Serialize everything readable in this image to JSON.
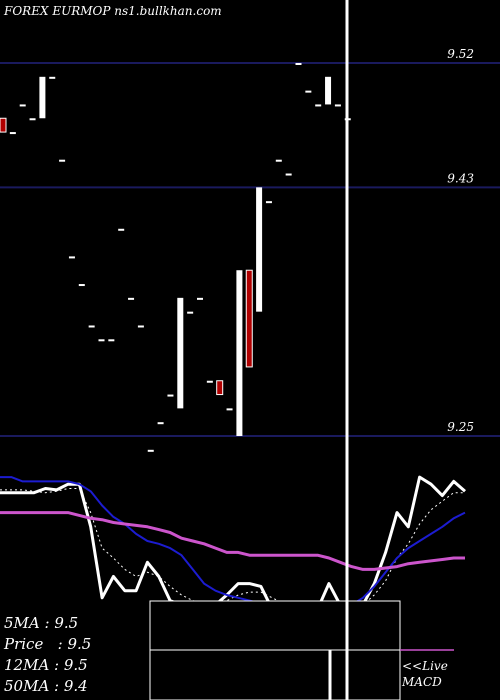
{
  "header": {
    "title": "FOREX  EURMOP ns1.bullkhan.com"
  },
  "indicators": [
    {
      "label": "5MA",
      "value": "9.5"
    },
    {
      "label": "Price",
      "value": "9.5"
    },
    {
      "label": "12MA",
      "value": "9.5"
    },
    {
      "label": "50MA",
      "value": "9.4"
    }
  ],
  "links": {
    "live": "<<Live",
    "macd": "MACD"
  },
  "colors": {
    "background": "#000000",
    "gridline": "#1a1a5e",
    "up_bar": "#ffffff",
    "down_bar": "#b00000",
    "price_line": "#ffffff",
    "ma_fast": "#ffffff",
    "ma_mid": "#1c1cd0",
    "ma_slow": "#cc55cc",
    "cursor": "#ffffff"
  },
  "chart_data": [
    {
      "type": "ohlc",
      "title": "",
      "y_ticks": [
        9.52,
        9.43,
        9.25
      ],
      "ylim": [
        9.22,
        9.56
      ],
      "grid": "horizontal",
      "bars": [
        {
          "o": 9.48,
          "h": 9.48,
          "l": 9.47,
          "c": 9.47
        },
        {
          "o": 9.47,
          "h": 9.47,
          "l": 9.47,
          "c": 9.47
        },
        {
          "o": 9.49,
          "h": 9.49,
          "l": 9.49,
          "c": 9.49
        },
        {
          "o": 9.48,
          "h": 9.48,
          "l": 9.48,
          "c": 9.48
        },
        {
          "o": 9.48,
          "h": 9.51,
          "l": 9.48,
          "c": 9.51
        },
        {
          "o": 9.51,
          "h": 9.51,
          "l": 9.51,
          "c": 9.51
        },
        {
          "o": 9.45,
          "h": 9.45,
          "l": 9.45,
          "c": 9.45
        },
        {
          "o": 9.38,
          "h": 9.38,
          "l": 9.38,
          "c": 9.38
        },
        {
          "o": 9.36,
          "h": 9.36,
          "l": 9.36,
          "c": 9.36
        },
        {
          "o": 9.33,
          "h": 9.33,
          "l": 9.33,
          "c": 9.33
        },
        {
          "o": 9.32,
          "h": 9.32,
          "l": 9.32,
          "c": 9.32
        },
        {
          "o": 9.32,
          "h": 9.32,
          "l": 9.32,
          "c": 9.32
        },
        {
          "o": 9.4,
          "h": 9.4,
          "l": 9.4,
          "c": 9.4
        },
        {
          "o": 9.35,
          "h": 9.35,
          "l": 9.35,
          "c": 9.35
        },
        {
          "o": 9.33,
          "h": 9.33,
          "l": 9.33,
          "c": 9.33
        },
        {
          "o": 9.24,
          "h": 9.24,
          "l": 9.24,
          "c": 9.24
        },
        {
          "o": 9.26,
          "h": 9.26,
          "l": 9.26,
          "c": 9.26
        },
        {
          "o": 9.28,
          "h": 9.28,
          "l": 9.28,
          "c": 9.28
        },
        {
          "o": 9.27,
          "h": 9.35,
          "l": 9.27,
          "c": 9.35
        },
        {
          "o": 9.34,
          "h": 9.34,
          "l": 9.34,
          "c": 9.34
        },
        {
          "o": 9.35,
          "h": 9.35,
          "l": 9.35,
          "c": 9.35
        },
        {
          "o": 9.29,
          "h": 9.29,
          "l": 9.29,
          "c": 9.29
        },
        {
          "o": 9.29,
          "h": 9.29,
          "l": 9.28,
          "c": 9.28
        },
        {
          "o": 9.27,
          "h": 9.27,
          "l": 9.27,
          "c": 9.27
        },
        {
          "o": 9.25,
          "h": 9.37,
          "l": 9.25,
          "c": 9.37
        },
        {
          "o": 9.37,
          "h": 9.37,
          "l": 9.3,
          "c": 9.3
        },
        {
          "o": 9.34,
          "h": 9.43,
          "l": 9.34,
          "c": 9.43
        },
        {
          "o": 9.42,
          "h": 9.42,
          "l": 9.42,
          "c": 9.42
        },
        {
          "o": 9.45,
          "h": 9.45,
          "l": 9.45,
          "c": 9.45
        },
        {
          "o": 9.44,
          "h": 9.44,
          "l": 9.44,
          "c": 9.44
        },
        {
          "o": 9.52,
          "h": 9.52,
          "l": 9.52,
          "c": 9.52
        },
        {
          "o": 9.5,
          "h": 9.5,
          "l": 9.5,
          "c": 9.5
        },
        {
          "o": 9.49,
          "h": 9.49,
          "l": 9.49,
          "c": 9.49
        },
        {
          "o": 9.49,
          "h": 9.51,
          "l": 9.49,
          "c": 9.51
        },
        {
          "o": 9.49,
          "h": 9.49,
          "l": 9.49,
          "c": 9.49
        },
        {
          "o": 9.48,
          "h": 9.48,
          "l": 9.48,
          "c": 9.48
        }
      ]
    },
    {
      "type": "line",
      "title": "",
      "ylim": [
        0,
        1
      ],
      "series": [
        {
          "values": [
            0.84,
            0.84,
            0.84,
            0.84,
            0.87,
            0.86,
            0.9,
            0.9,
            0.6,
            0.1,
            0.25,
            0.15,
            0.15,
            0.35,
            0.25,
            0.08,
            0.05,
            0.05,
            0.05,
            0.05,
            0.12,
            0.2,
            0.2,
            0.18,
            0.02,
            0.02,
            0.02,
            0.02,
            0.02,
            0.2,
            0.05,
            0.02,
            0.05,
            0.2,
            0.42,
            0.7,
            0.6,
            0.95,
            0.9,
            0.82,
            0.92,
            0.85
          ]
        },
        {
          "values": [
            0.86,
            0.86,
            0.86,
            0.85,
            0.84,
            0.85,
            0.87,
            0.87,
            0.7,
            0.45,
            0.38,
            0.3,
            0.25,
            0.28,
            0.25,
            0.18,
            0.12,
            0.08,
            0.06,
            0.06,
            0.08,
            0.12,
            0.14,
            0.14,
            0.1,
            0.06,
            0.04,
            0.03,
            0.03,
            0.07,
            0.06,
            0.05,
            0.05,
            0.12,
            0.22,
            0.38,
            0.48,
            0.62,
            0.72,
            0.78,
            0.84,
            0.84
          ]
        },
        {
          "values": [
            0.95,
            0.95,
            0.92,
            0.92,
            0.92,
            0.92,
            0.92,
            0.9,
            0.85,
            0.75,
            0.67,
            0.62,
            0.55,
            0.5,
            0.48,
            0.45,
            0.4,
            0.3,
            0.2,
            0.15,
            0.12,
            0.1,
            0.08,
            0.06,
            0.04,
            0.03,
            0.02,
            0.02,
            0.02,
            0.03,
            0.03,
            0.05,
            0.1,
            0.18,
            0.28,
            0.38,
            0.45,
            0.5,
            0.55,
            0.6,
            0.66,
            0.7
          ]
        },
        {
          "values": [
            0.7,
            0.7,
            0.7,
            0.7,
            0.7,
            0.7,
            0.7,
            0.68,
            0.66,
            0.65,
            0.63,
            0.62,
            0.61,
            0.6,
            0.58,
            0.56,
            0.52,
            0.5,
            0.48,
            0.45,
            0.42,
            0.42,
            0.4,
            0.4,
            0.4,
            0.4,
            0.4,
            0.4,
            0.4,
            0.38,
            0.35,
            0.32,
            0.3,
            0.3,
            0.31,
            0.32,
            0.34,
            0.35,
            0.36,
            0.37,
            0.38,
            0.38
          ]
        }
      ]
    }
  ]
}
